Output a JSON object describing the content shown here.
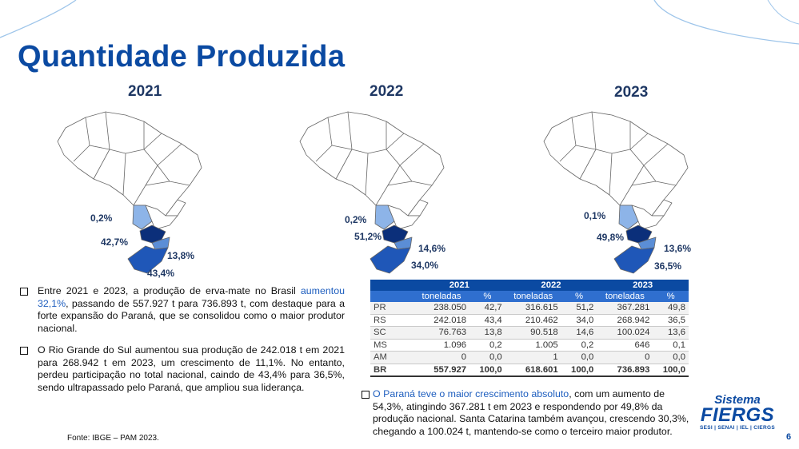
{
  "title": "Quantidade Produzida",
  "years": [
    "2021",
    "2022",
    "2023"
  ],
  "maps": [
    {
      "year": "2021",
      "labels": {
        "ms": "0,2%",
        "pr": "42,7%",
        "sc": "13,8%",
        "rs": "43,4%"
      }
    },
    {
      "year": "2022",
      "labels": {
        "ms": "0,2%",
        "pr": "51,2%",
        "sc": "14,6%",
        "rs": "34,0%"
      }
    },
    {
      "year": "2023",
      "labels": {
        "ms": "0,1%",
        "pr": "49,8%",
        "sc": "13,6%",
        "rs": "36,5%"
      }
    }
  ],
  "colors": {
    "title": "#0b4aa2",
    "ms": "#8db4e8",
    "pr": "#0b2f7a",
    "sc": "#5b8ed6",
    "rs": "#1f57b8",
    "other": "#ffffff",
    "border": "#666666"
  },
  "bullet1": {
    "pre": "Entre 2021 e 2023, a produção de erva-mate no Brasil ",
    "highlight": "aumentou 32,1%",
    "post": ", passando de 557.927 t para 736.893 t, com destaque para a forte expansão do Paraná, que se consolidou como o maior produtor nacional."
  },
  "bullet2": {
    "text": "O Rio Grande do Sul aumentou sua produção de 242.018 t em 2021 para 268.942 t em 2023, um crescimento de 11,1%. No entanto, perdeu participação no total nacional, caindo de 43,4% para 36,5%, sendo ultrapassado pelo Paraná, que ampliou sua liderança."
  },
  "bullet3": {
    "highlight": "O Paraná teve o maior crescimento absoluto",
    "post": ", com um aumento de 54,3%, atingindo 367.281 t em 2023 e respondendo por 49,8% da produção nacional. Santa Catarina também avançou, crescendo 30,3%, chegando a 100.024 t, mantendo-se como o terceiro maior produtor."
  },
  "table": {
    "years": [
      "2021",
      "2022",
      "2023"
    ],
    "sub": [
      "toneladas",
      "%"
    ],
    "rows": [
      [
        "PR",
        "238.050",
        "42,7",
        "316.615",
        "51,2",
        "367.281",
        "49,8"
      ],
      [
        "RS",
        "242.018",
        "43,4",
        "210.462",
        "34,0",
        "268.942",
        "36,5"
      ],
      [
        "SC",
        "76.763",
        "13,8",
        "90.518",
        "14,6",
        "100.024",
        "13,6"
      ],
      [
        "MS",
        "1.096",
        "0,2",
        "1.005",
        "0,2",
        "646",
        "0,1"
      ],
      [
        "AM",
        "0",
        "0,0",
        "1",
        "0,0",
        "0",
        "0,0"
      ]
    ],
    "total": [
      "BR",
      "557.927",
      "100,0",
      "618.601",
      "100,0",
      "736.893",
      "100,0"
    ]
  },
  "fonte": "Fonte: IBGE – PAM 2023.",
  "logo": {
    "line1": "Sistema",
    "line2": "FIERGS",
    "line3": "SESI | SENAI | IEL | CIERGS"
  },
  "page_number": "6"
}
